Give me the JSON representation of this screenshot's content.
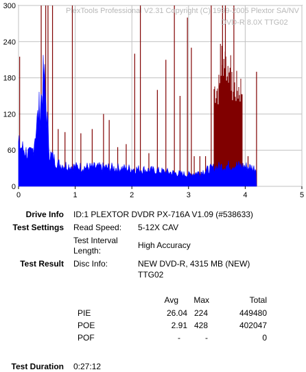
{
  "window": {
    "watermark_line1": "PlexTools Professional V2.31 Copyright (C) 1999-2005 Plextor SA/NV",
    "watermark_line2": "DVD-R   8.0X   TTG02"
  },
  "chart_data": {
    "type": "bar",
    "xlim": [
      0,
      5
    ],
    "ylim": [
      0,
      300
    ],
    "x_ticks": [
      "0",
      "1",
      "2",
      "3",
      "4",
      "5"
    ],
    "y_ticks": [
      "0",
      "60",
      "120",
      "180",
      "240",
      "300"
    ],
    "grid": true,
    "series": [
      {
        "key": "pie",
        "color": "#0000ff",
        "points": [
          [
            0.0,
            70
          ],
          [
            0.1,
            62
          ],
          [
            0.2,
            52
          ],
          [
            0.25,
            60
          ],
          [
            0.3,
            95
          ],
          [
            0.35,
            120
          ],
          [
            0.4,
            150
          ],
          [
            0.45,
            185
          ],
          [
            0.5,
            120
          ],
          [
            0.55,
            55
          ],
          [
            0.7,
            38
          ],
          [
            1.0,
            33
          ],
          [
            1.5,
            32
          ],
          [
            2.0,
            30
          ],
          [
            2.5,
            26
          ],
          [
            2.8,
            22
          ],
          [
            3.0,
            20
          ],
          [
            3.2,
            24
          ],
          [
            3.5,
            33
          ],
          [
            3.8,
            36
          ],
          [
            4.0,
            34
          ],
          [
            4.2,
            30
          ]
        ]
      },
      {
        "key": "poe",
        "color": "#800000",
        "spikes": [
          [
            0.02,
            215
          ],
          [
            0.4,
            300
          ],
          [
            0.48,
            300
          ],
          [
            0.52,
            300
          ],
          [
            0.6,
            300
          ],
          [
            0.7,
            95
          ],
          [
            0.82,
            90
          ],
          [
            0.95,
            300
          ],
          [
            1.1,
            88
          ],
          [
            1.3,
            95
          ],
          [
            1.5,
            120
          ],
          [
            1.6,
            110
          ],
          [
            1.75,
            65
          ],
          [
            1.9,
            70
          ],
          [
            2.05,
            220
          ],
          [
            2.15,
            300
          ],
          [
            2.3,
            55
          ],
          [
            2.45,
            160
          ],
          [
            2.6,
            210
          ],
          [
            2.75,
            300
          ],
          [
            2.85,
            150
          ],
          [
            2.98,
            280
          ],
          [
            3.05,
            230
          ],
          [
            3.1,
            50
          ],
          [
            3.2,
            50
          ],
          [
            3.3,
            50
          ],
          [
            3.4,
            300
          ],
          [
            3.5,
            40
          ],
          [
            3.6,
            300
          ],
          [
            3.65,
            300
          ],
          [
            3.8,
            300
          ],
          [
            3.9,
            80
          ],
          [
            4.05,
            50
          ],
          [
            4.2,
            190
          ]
        ],
        "dense_blocks": [
          {
            "x_from": 3.45,
            "x_to": 3.95,
            "level": 175
          },
          {
            "x_from": 3.55,
            "x_to": 3.75,
            "level": 220
          }
        ]
      }
    ],
    "data_end_x": 4.2
  },
  "drive_info": {
    "label": "Drive Info",
    "value": "ID:1 PLEXTOR DVDR PX-716A V1.09 (#538633)"
  },
  "test_settings": {
    "label": "Test Settings",
    "read_speed_label": "Read Speed:",
    "read_speed_value": "5-12X CAV",
    "interval_label_1": "Test Interval",
    "interval_label_2": "Length:",
    "interval_value": "High Accuracy"
  },
  "test_result": {
    "label": "Test Result",
    "disc_info_label": "Disc Info:",
    "disc_info_value_1": "NEW DVD-R, 4315 MB (NEW)",
    "disc_info_value_2": "TTG02"
  },
  "stats": {
    "headers": {
      "avg": "Avg",
      "max": "Max",
      "total": "Total"
    },
    "rows": [
      {
        "name": "PIE",
        "avg": "26.04",
        "max": "224",
        "total": "449480"
      },
      {
        "name": "POE",
        "avg": "2.91",
        "max": "428",
        "total": "402047"
      },
      {
        "name": "POF",
        "avg": "-",
        "max": "-",
        "total": "0"
      }
    ]
  },
  "test_duration": {
    "label": "Test Duration",
    "value": "0:27:12"
  }
}
